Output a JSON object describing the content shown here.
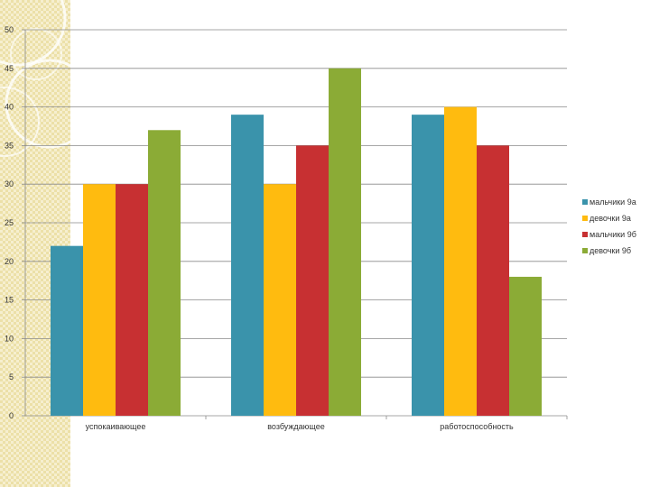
{
  "chart_data": {
    "type": "bar",
    "categories": [
      "успокаивающее",
      "возбуждающее",
      "работоспособность"
    ],
    "series": [
      {
        "name": "мальчики 9а",
        "color": "#3a93ab",
        "values": [
          22,
          39,
          39
        ]
      },
      {
        "name": "девочки 9а",
        "color": "#ffbb0f",
        "values": [
          30,
          30,
          40
        ]
      },
      {
        "name": "мальчики 9б",
        "color": "#c73032",
        "values": [
          30,
          35,
          35
        ]
      },
      {
        "name": "девочки 9б",
        "color": "#8bab36",
        "values": [
          37,
          45,
          18
        ]
      }
    ],
    "ylim": [
      0,
      50
    ],
    "yticks": [
      0,
      5,
      10,
      15,
      20,
      25,
      30,
      35,
      40,
      45,
      50
    ],
    "grid": true,
    "legend_position": "right",
    "title": "",
    "xlabel": "",
    "ylabel": ""
  }
}
